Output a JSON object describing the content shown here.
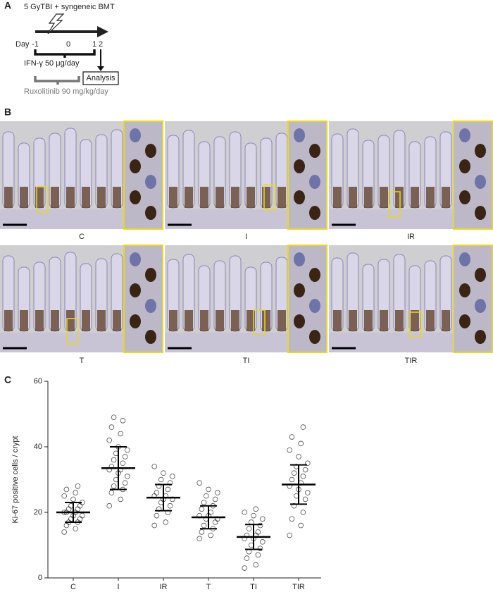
{
  "panel_labels": [
    "A",
    "B",
    "C"
  ],
  "timeline": {
    "title": "5 GyTBI + syngeneic BMT",
    "day_label": "Day",
    "days": [
      "-1",
      "0",
      "1",
      "2"
    ],
    "ifn": "IFN-γ 50 μg/day",
    "analysis": "Analysis",
    "ruxolitinib": "Ruxolitinib 90 mg/kg/day"
  },
  "micrographs": {
    "labels": [
      "C",
      "I",
      "IR",
      "T",
      "TI",
      "TIR"
    ]
  },
  "chart_data": {
    "type": "dot_plot",
    "y_label": "Ki-67 positive cells / crypt",
    "categories": [
      "C",
      "I",
      "IR",
      "T",
      "TI",
      "TIR"
    ],
    "means": [
      20,
      33.5,
      24.5,
      18.5,
      12.5,
      28.5
    ],
    "sds": [
      3,
      6.5,
      4,
      3.5,
      3.8,
      6
    ],
    "points": [
      [
        14,
        15,
        16,
        17,
        17,
        18,
        18,
        19,
        19,
        20,
        20,
        20,
        21,
        21,
        22,
        22,
        23,
        24,
        25,
        26,
        27,
        28
      ],
      [
        22,
        24,
        26,
        27,
        28,
        29,
        30,
        31,
        32,
        33,
        33,
        34,
        35,
        36,
        37,
        38,
        39,
        40,
        42,
        44,
        46,
        48,
        49
      ],
      [
        16,
        17,
        19,
        20,
        21,
        22,
        23,
        24,
        24,
        25,
        25,
        26,
        27,
        28,
        29,
        30,
        31,
        32,
        34
      ],
      [
        12,
        13,
        14,
        15,
        16,
        17,
        18,
        18,
        19,
        19,
        20,
        21,
        22,
        23,
        24,
        25,
        26,
        27,
        29
      ],
      [
        3,
        4,
        6,
        7,
        8,
        9,
        10,
        11,
        12,
        12,
        13,
        13,
        14,
        15,
        16,
        17,
        18,
        19,
        20,
        21
      ],
      [
        13,
        16,
        18,
        20,
        22,
        24,
        25,
        26,
        27,
        28,
        29,
        30,
        31,
        32,
        33,
        34,
        35,
        37,
        39,
        41,
        43,
        46
      ]
    ],
    "color": "#000000",
    "ylim": [
      0,
      60
    ],
    "yticks": [
      0,
      20,
      40,
      60
    ]
  }
}
